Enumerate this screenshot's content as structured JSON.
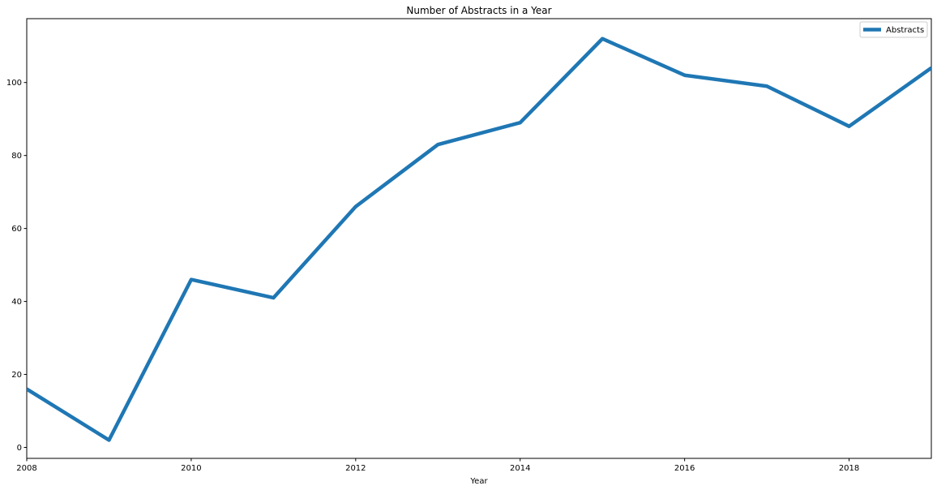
{
  "chart_data": {
    "type": "line",
    "title": "Number of Abstracts in a Year",
    "xlabel": "Year",
    "ylabel": "",
    "x": [
      2008,
      2009,
      2010,
      2011,
      2012,
      2013,
      2014,
      2015,
      2016,
      2017,
      2018,
      2019
    ],
    "series": [
      {
        "name": "Abstracts",
        "values": [
          16,
          2,
          46,
          41,
          66,
          83,
          89,
          112,
          102,
          99,
          88,
          104
        ],
        "color": "#1f77b4"
      }
    ],
    "xlim": [
      2008,
      2019
    ],
    "ylim": [
      -3,
      117.5
    ],
    "xticks": [
      "2008",
      "2010",
      "2012",
      "2014",
      "2016",
      "2018"
    ],
    "yticks": [
      "0",
      "20",
      "40",
      "60",
      "80",
      "100"
    ],
    "grid": false,
    "legend_position": "top-right"
  }
}
